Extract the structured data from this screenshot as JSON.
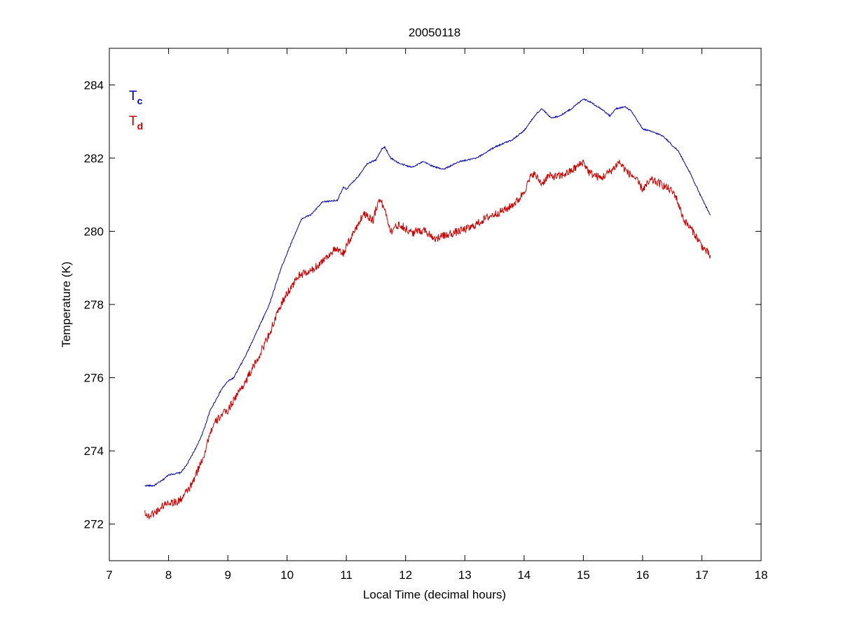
{
  "chart_data": {
    "type": "line",
    "title": "20050118",
    "xlabel": "Local Time (decimal hours)",
    "ylabel": "Temperature (K)",
    "xlim": [
      7,
      18
    ],
    "ylim": [
      271,
      285
    ],
    "xticks": [
      7,
      8,
      9,
      10,
      11,
      12,
      13,
      14,
      15,
      16,
      17,
      18
    ],
    "yticks": [
      272,
      274,
      276,
      278,
      280,
      282,
      284
    ],
    "grid": false,
    "legend_position": "top-left",
    "series": [
      {
        "name": "Tc",
        "name_main": "T",
        "name_sub": "c",
        "color": "#0000a8",
        "noise": 0.02,
        "points": [
          [
            7.6,
            273.05
          ],
          [
            7.75,
            273.05
          ],
          [
            7.9,
            273.2
          ],
          [
            8.0,
            273.35
          ],
          [
            8.2,
            273.4
          ],
          [
            8.3,
            273.6
          ],
          [
            8.5,
            274.2
          ],
          [
            8.6,
            274.6
          ],
          [
            8.7,
            275.1
          ],
          [
            8.8,
            275.4
          ],
          [
            8.9,
            275.7
          ],
          [
            9.0,
            275.9
          ],
          [
            9.1,
            276.0
          ],
          [
            9.3,
            276.6
          ],
          [
            9.5,
            277.3
          ],
          [
            9.7,
            278.0
          ],
          [
            9.9,
            279.0
          ],
          [
            10.1,
            279.8
          ],
          [
            10.25,
            280.35
          ],
          [
            10.4,
            280.45
          ],
          [
            10.6,
            280.8
          ],
          [
            10.85,
            280.85
          ],
          [
            10.95,
            281.2
          ],
          [
            11.0,
            281.15
          ],
          [
            11.2,
            281.5
          ],
          [
            11.35,
            281.85
          ],
          [
            11.5,
            281.95
          ],
          [
            11.6,
            282.25
          ],
          [
            11.65,
            282.3
          ],
          [
            11.75,
            282.0
          ],
          [
            11.9,
            281.85
          ],
          [
            12.1,
            281.75
          ],
          [
            12.3,
            281.9
          ],
          [
            12.5,
            281.75
          ],
          [
            12.65,
            281.7
          ],
          [
            12.9,
            281.9
          ],
          [
            13.2,
            282.0
          ],
          [
            13.5,
            282.3
          ],
          [
            13.8,
            282.5
          ],
          [
            14.0,
            282.75
          ],
          [
            14.2,
            283.2
          ],
          [
            14.3,
            283.35
          ],
          [
            14.45,
            283.1
          ],
          [
            14.6,
            283.15
          ],
          [
            14.8,
            283.35
          ],
          [
            15.0,
            283.62
          ],
          [
            15.1,
            283.55
          ],
          [
            15.2,
            283.45
          ],
          [
            15.3,
            283.35
          ],
          [
            15.45,
            283.15
          ],
          [
            15.55,
            283.35
          ],
          [
            15.7,
            283.4
          ],
          [
            15.8,
            283.3
          ],
          [
            16.0,
            282.8
          ],
          [
            16.2,
            282.7
          ],
          [
            16.35,
            282.6
          ],
          [
            16.5,
            282.35
          ],
          [
            16.6,
            282.2
          ],
          [
            16.8,
            281.6
          ],
          [
            17.0,
            280.9
          ],
          [
            17.15,
            280.42
          ]
        ]
      },
      {
        "name": "Td",
        "name_main": "T",
        "name_sub": "d",
        "color": "#cc0000",
        "noise": 0.11,
        "points": [
          [
            7.6,
            272.35
          ],
          [
            7.65,
            272.2
          ],
          [
            7.8,
            272.35
          ],
          [
            7.9,
            272.5
          ],
          [
            8.0,
            272.6
          ],
          [
            8.15,
            272.6
          ],
          [
            8.25,
            272.75
          ],
          [
            8.4,
            273.1
          ],
          [
            8.5,
            273.5
          ],
          [
            8.6,
            273.9
          ],
          [
            8.7,
            274.5
          ],
          [
            8.8,
            274.8
          ],
          [
            8.9,
            275.0
          ],
          [
            9.0,
            275.1
          ],
          [
            9.1,
            275.4
          ],
          [
            9.3,
            275.9
          ],
          [
            9.5,
            276.5
          ],
          [
            9.7,
            277.2
          ],
          [
            9.9,
            278.0
          ],
          [
            10.0,
            278.3
          ],
          [
            10.2,
            278.8
          ],
          [
            10.4,
            278.9
          ],
          [
            10.6,
            279.2
          ],
          [
            10.8,
            279.5
          ],
          [
            10.95,
            279.4
          ],
          [
            11.1,
            279.9
          ],
          [
            11.3,
            280.5
          ],
          [
            11.45,
            280.3
          ],
          [
            11.55,
            280.9
          ],
          [
            11.65,
            280.6
          ],
          [
            11.75,
            280.0
          ],
          [
            11.9,
            280.2
          ],
          [
            12.1,
            279.95
          ],
          [
            12.3,
            280.05
          ],
          [
            12.5,
            279.8
          ],
          [
            12.7,
            279.9
          ],
          [
            12.9,
            280.0
          ],
          [
            13.1,
            280.1
          ],
          [
            13.4,
            280.4
          ],
          [
            13.7,
            280.6
          ],
          [
            13.9,
            280.85
          ],
          [
            14.0,
            281.1
          ],
          [
            14.15,
            281.6
          ],
          [
            14.3,
            281.3
          ],
          [
            14.4,
            281.5
          ],
          [
            14.6,
            281.5
          ],
          [
            14.8,
            281.65
          ],
          [
            15.0,
            281.9
          ],
          [
            15.1,
            281.6
          ],
          [
            15.3,
            281.45
          ],
          [
            15.5,
            281.7
          ],
          [
            15.6,
            281.9
          ],
          [
            15.75,
            281.6
          ],
          [
            15.85,
            281.5
          ],
          [
            16.0,
            281.15
          ],
          [
            16.15,
            281.4
          ],
          [
            16.3,
            281.3
          ],
          [
            16.45,
            281.15
          ],
          [
            16.55,
            281.0
          ],
          [
            16.7,
            280.3
          ],
          [
            16.85,
            280.0
          ],
          [
            17.0,
            279.6
          ],
          [
            17.15,
            279.3
          ]
        ]
      }
    ]
  }
}
